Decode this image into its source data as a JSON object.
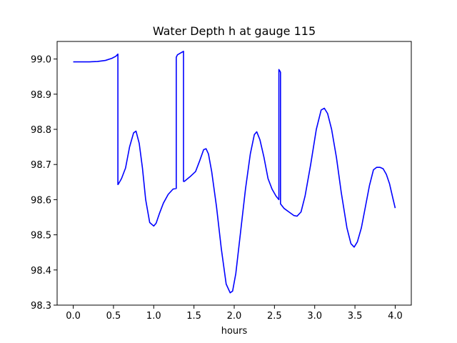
{
  "chart_data": {
    "type": "line",
    "title": "Water Depth h at gauge 115",
    "xlabel": "hours",
    "ylabel": "",
    "xlim": [
      -0.2,
      4.2
    ],
    "ylim": [
      98.3,
      99.05
    ],
    "xticks": [
      "0.0",
      "0.5",
      "1.0",
      "1.5",
      "2.0",
      "2.5",
      "3.0",
      "3.5",
      "4.0"
    ],
    "yticks": [
      "98.3",
      "98.4",
      "98.5",
      "98.6",
      "98.7",
      "98.8",
      "98.9",
      "99.0"
    ],
    "grid": false,
    "series": [
      {
        "color": "#0000ff",
        "x": [
          0.0,
          0.1,
          0.2,
          0.3,
          0.4,
          0.48,
          0.53,
          0.555,
          0.555,
          0.56,
          0.6,
          0.65,
          0.7,
          0.75,
          0.78,
          0.82,
          0.86,
          0.9,
          0.95,
          1.0,
          1.03,
          1.07,
          1.12,
          1.18,
          1.24,
          1.28,
          1.28,
          1.295,
          1.37,
          1.37,
          1.38,
          1.45,
          1.52,
          1.57,
          1.62,
          1.65,
          1.68,
          1.72,
          1.78,
          1.84,
          1.9,
          1.95,
          1.98,
          2.02,
          2.08,
          2.14,
          2.2,
          2.25,
          2.28,
          2.32,
          2.37,
          2.42,
          2.47,
          2.52,
          2.555,
          2.555,
          2.57,
          2.575,
          2.575,
          2.62,
          2.68,
          2.74,
          2.78,
          2.83,
          2.88,
          2.95,
          3.02,
          3.08,
          3.12,
          3.16,
          3.21,
          3.27,
          3.33,
          3.4,
          3.45,
          3.49,
          3.53,
          3.58,
          3.63,
          3.68,
          3.73,
          3.77,
          3.81,
          3.85,
          3.89,
          3.93,
          3.97,
          4.0
        ],
        "y": [
          98.992,
          98.992,
          98.992,
          98.993,
          98.996,
          99.002,
          99.008,
          99.014,
          98.643,
          98.644,
          98.66,
          98.69,
          98.75,
          98.79,
          98.795,
          98.76,
          98.69,
          98.6,
          98.535,
          98.525,
          98.533,
          98.56,
          98.59,
          98.615,
          98.63,
          98.632,
          99.005,
          99.012,
          99.022,
          98.652,
          98.652,
          98.665,
          98.68,
          98.71,
          98.742,
          98.745,
          98.73,
          98.68,
          98.58,
          98.46,
          98.36,
          98.335,
          98.34,
          98.39,
          98.51,
          98.63,
          98.73,
          98.785,
          98.793,
          98.77,
          98.72,
          98.66,
          98.63,
          98.61,
          98.6,
          98.97,
          98.965,
          98.962,
          98.588,
          98.575,
          98.565,
          98.555,
          98.553,
          98.565,
          98.61,
          98.7,
          98.8,
          98.855,
          98.86,
          98.845,
          98.8,
          98.72,
          98.62,
          98.52,
          98.475,
          98.465,
          98.48,
          98.52,
          98.58,
          98.64,
          98.685,
          98.692,
          98.692,
          98.688,
          98.672,
          98.645,
          98.605,
          98.576
        ]
      }
    ]
  }
}
